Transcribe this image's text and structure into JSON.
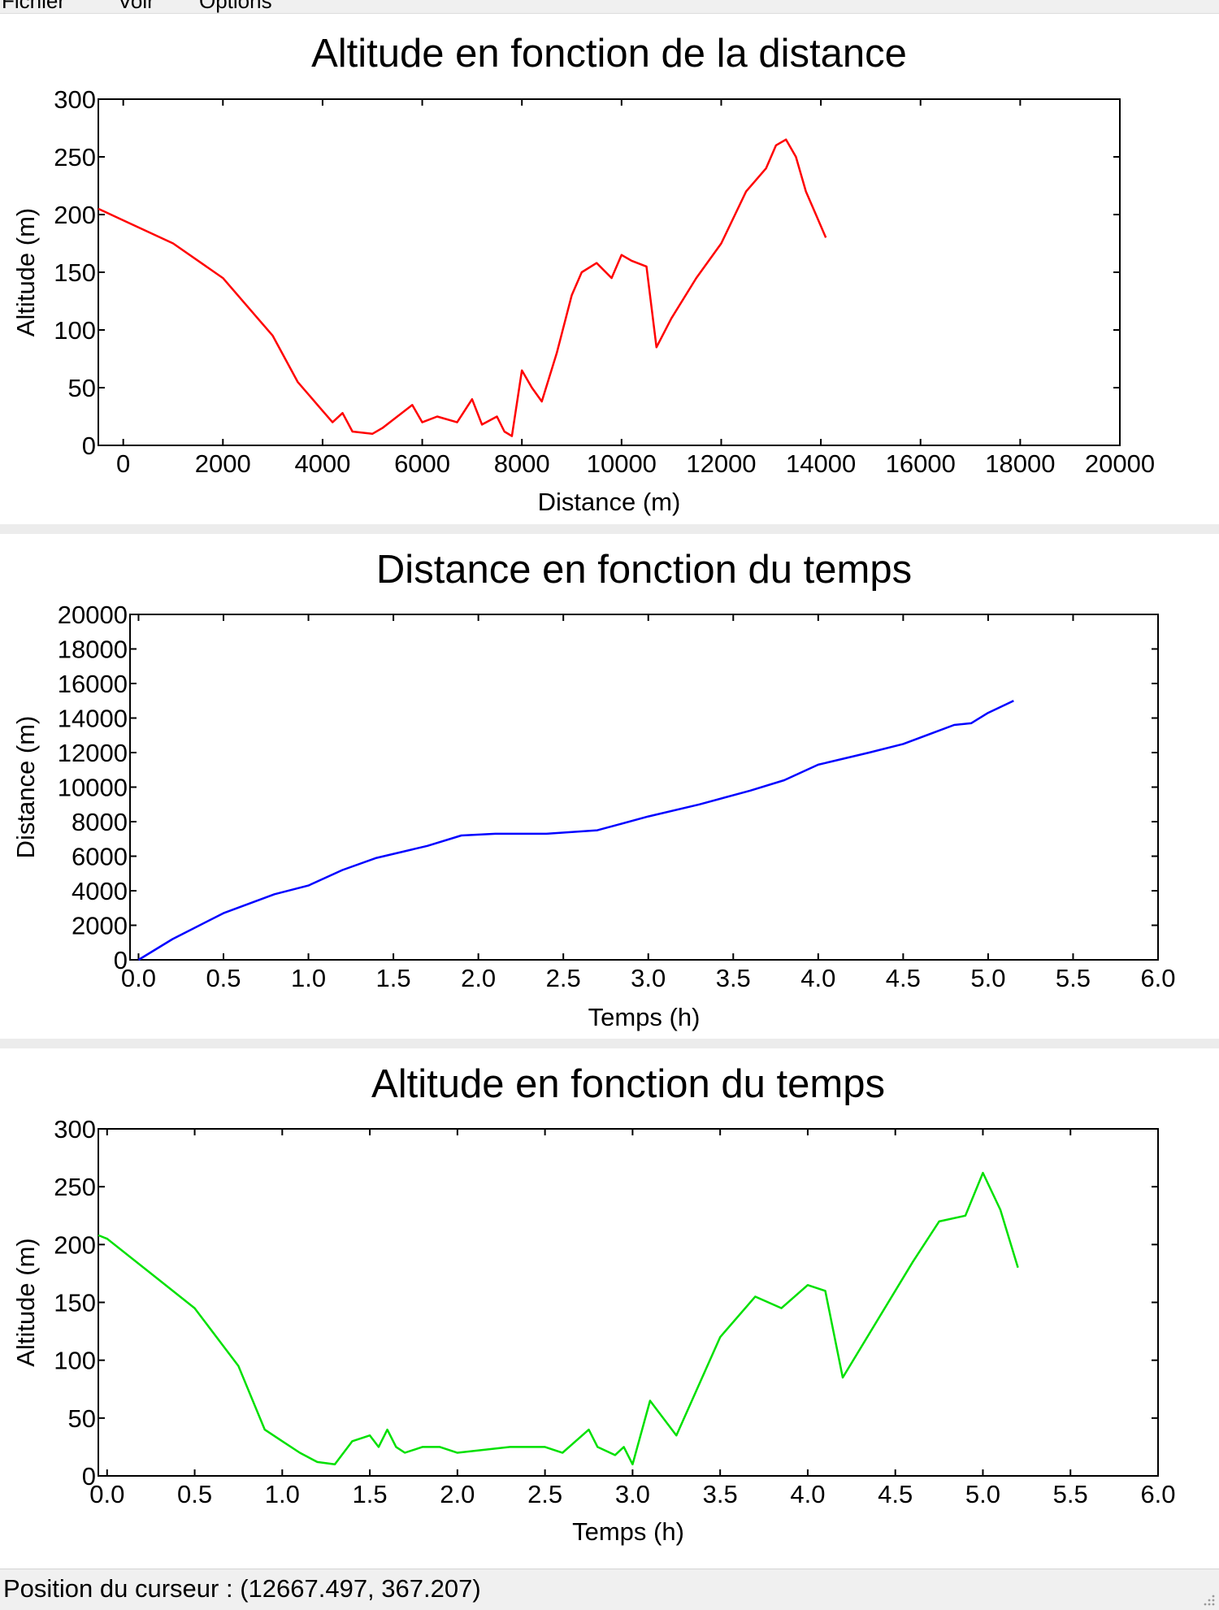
{
  "menu": {
    "items": [
      "Fichier",
      "Voir",
      "Options"
    ]
  },
  "status": {
    "text": "Position du curseur : (12667.497, 367.207)"
  },
  "chart_data": [
    {
      "type": "line",
      "title": "Altitude en fonction de la distance",
      "xlabel": "Distance (m)",
      "ylabel": "Altitude (m)",
      "xlim": [
        -500,
        20000
      ],
      "ylim": [
        0,
        300
      ],
      "xticks": [
        0,
        2000,
        4000,
        6000,
        8000,
        10000,
        12000,
        14000,
        16000,
        18000,
        20000
      ],
      "yticks": [
        0,
        50,
        100,
        150,
        200,
        250,
        300
      ],
      "color": "#ff0000",
      "series": [
        {
          "x": [
            -500,
            0,
            1000,
            2000,
            3000,
            3500,
            4000,
            4200,
            4400,
            4600,
            5000,
            5200,
            5500,
            5800,
            6000,
            6300,
            6700,
            7000,
            7200,
            7500,
            7650,
            7800,
            8000,
            8200,
            8400,
            8700,
            9000,
            9200,
            9500,
            9800,
            10000,
            10200,
            10500,
            10700,
            11000,
            11500,
            12000,
            12500,
            12900,
            13100,
            13300,
            13500,
            13700,
            13900,
            14100
          ],
          "y": [
            205,
            195,
            175,
            145,
            95,
            55,
            30,
            20,
            28,
            12,
            10,
            15,
            25,
            35,
            20,
            25,
            20,
            40,
            18,
            25,
            12,
            8,
            65,
            50,
            38,
            80,
            130,
            150,
            158,
            145,
            165,
            160,
            155,
            85,
            110,
            145,
            175,
            220,
            240,
            260,
            265,
            250,
            220,
            200,
            180
          ]
        }
      ]
    },
    {
      "type": "line",
      "title": "Distance en fonction du temps",
      "xlabel": "Temps (h)",
      "ylabel": "Distance (m)",
      "xlim": [
        -0.05,
        6.0
      ],
      "ylim": [
        0,
        20000
      ],
      "xticks": [
        0.0,
        0.5,
        1.0,
        1.5,
        2.0,
        2.5,
        3.0,
        3.5,
        4.0,
        4.5,
        5.0,
        5.5,
        6.0
      ],
      "yticks": [
        0,
        2000,
        4000,
        6000,
        8000,
        10000,
        12000,
        14000,
        16000,
        18000,
        20000
      ],
      "color": "#0000ff",
      "series": [
        {
          "x": [
            0.0,
            0.2,
            0.5,
            0.8,
            1.0,
            1.2,
            1.4,
            1.7,
            1.9,
            2.1,
            2.4,
            2.7,
            3.0,
            3.3,
            3.6,
            3.8,
            4.0,
            4.3,
            4.5,
            4.8,
            4.9,
            5.0,
            5.15
          ],
          "y": [
            0,
            1200,
            2700,
            3800,
            4300,
            5200,
            5900,
            6600,
            7200,
            7300,
            7300,
            7500,
            8300,
            9000,
            9800,
            10400,
            11300,
            12000,
            12500,
            13600,
            13700,
            14300,
            15000
          ]
        }
      ]
    },
    {
      "type": "line",
      "title": "Altitude en fonction du temps",
      "xlabel": "Temps (h)",
      "ylabel": "Altitude (m)",
      "xlim": [
        -0.05,
        6.0
      ],
      "ylim": [
        0,
        300
      ],
      "xticks": [
        0.0,
        0.5,
        1.0,
        1.5,
        2.0,
        2.5,
        3.0,
        3.5,
        4.0,
        4.5,
        5.0,
        5.5,
        6.0
      ],
      "yticks": [
        0,
        50,
        100,
        150,
        200,
        250,
        300
      ],
      "color": "#00e000",
      "series": [
        {
          "x": [
            -0.05,
            0.0,
            0.25,
            0.5,
            0.75,
            0.9,
            1.0,
            1.1,
            1.2,
            1.3,
            1.4,
            1.5,
            1.55,
            1.6,
            1.65,
            1.7,
            1.8,
            1.9,
            2.0,
            2.3,
            2.5,
            2.6,
            2.75,
            2.8,
            2.9,
            2.95,
            3.0,
            3.1,
            3.25,
            3.5,
            3.7,
            3.85,
            4.0,
            4.1,
            4.2,
            4.6,
            4.75,
            4.9,
            5.0,
            5.1,
            5.2
          ],
          "y": [
            208,
            205,
            175,
            145,
            95,
            40,
            30,
            20,
            12,
            10,
            30,
            35,
            25,
            40,
            25,
            20,
            25,
            25,
            20,
            25,
            25,
            20,
            40,
            25,
            18,
            25,
            10,
            65,
            35,
            120,
            155,
            145,
            165,
            160,
            85,
            185,
            220,
            225,
            262,
            230,
            180
          ]
        }
      ]
    }
  ]
}
